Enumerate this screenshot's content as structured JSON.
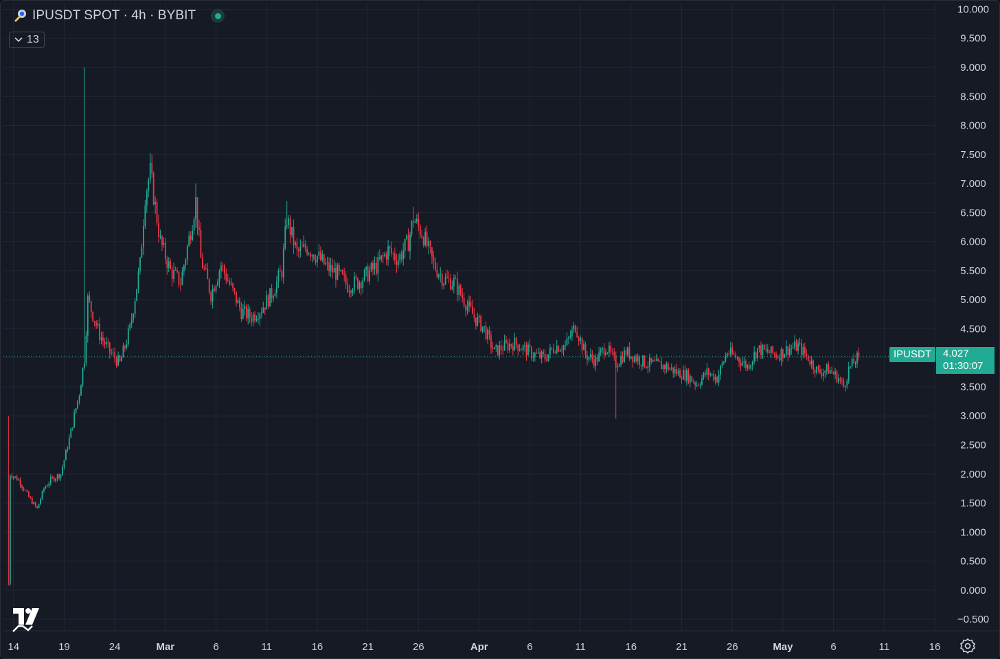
{
  "header": {
    "symbol_line": "IPUSDT SPOT · 4h · BYBIT",
    "indicator_count": "13"
  },
  "colors": {
    "background": "#161a25",
    "grid": "#232733",
    "text": "#d1d4dc",
    "up": "#22ab94",
    "down": "#f23645"
  },
  "price_label": {
    "ticker": "IPUSDT",
    "last_price": "4.027",
    "countdown": "01:30:07"
  },
  "chart_data": {
    "type": "candlestick",
    "symbol": "IPUSDT",
    "interval": "4h",
    "exchange": "BYBIT",
    "ylim": [
      -0.7,
      10.1
    ],
    "y_ticks": [
      "10.000",
      "9.500",
      "9.000",
      "8.500",
      "8.000",
      "7.500",
      "7.000",
      "6.500",
      "6.000",
      "5.500",
      "5.000",
      "4.500",
      "4.000",
      "3.500",
      "3.000",
      "2.500",
      "2.000",
      "1.500",
      "1.000",
      "0.500",
      "0.000",
      "−0.500"
    ],
    "x_ticks": [
      "14",
      "19",
      "24",
      "Mar",
      "6",
      "11",
      "16",
      "21",
      "26",
      "Apr",
      "6",
      "11",
      "16",
      "21",
      "26",
      "May",
      "6",
      "11",
      "16"
    ],
    "x_range_days": [
      "2025-02-13",
      "2025-05-16"
    ],
    "current_price": 4.027,
    "price_path": [
      [
        "2025-02-13T12:00",
        0.1,
        3.0
      ],
      [
        "2025-02-13T16:00",
        2.0
      ],
      [
        "2025-02-14T12:00",
        1.9
      ],
      [
        "2025-02-15T12:00",
        1.6
      ],
      [
        "2025-02-16T08:00",
        1.4
      ],
      [
        "2025-02-17T00:00",
        1.75
      ],
      [
        "2025-02-17T16:00",
        1.9
      ],
      [
        "2025-02-18T16:00",
        2.0
      ],
      [
        "2025-02-19T12:00",
        2.6
      ],
      [
        "2025-02-20T12:00",
        3.4
      ],
      [
        "2025-02-21T00:00",
        4.0,
        9.0
      ],
      [
        "2025-02-21T08:00",
        5.0
      ],
      [
        "2025-02-22T12:00",
        4.4
      ],
      [
        "2025-02-23T12:00",
        4.1
      ],
      [
        "2025-02-24T12:00",
        3.9
      ],
      [
        "2025-02-25T12:00",
        4.5
      ],
      [
        "2025-02-26T12:00",
        5.6
      ],
      [
        "2025-02-27T00:00",
        6.8
      ],
      [
        "2025-02-27T12:00",
        7.2,
        7.5
      ],
      [
        "2025-02-28T12:00",
        6.0
      ],
      [
        "2025-03-01T12:00",
        5.5
      ],
      [
        "2025-03-02T12:00",
        5.3
      ],
      [
        "2025-03-03T12:00",
        6.2
      ],
      [
        "2025-03-04T00:00",
        6.7,
        7.0
      ],
      [
        "2025-03-04T12:00",
        5.7
      ],
      [
        "2025-03-05T12:00",
        5.1
      ],
      [
        "2025-03-06T12:00",
        5.6
      ],
      [
        "2025-03-07T12:00",
        5.2
      ],
      [
        "2025-03-08T12:00",
        4.8
      ],
      [
        "2025-03-09T12:00",
        4.7
      ],
      [
        "2025-03-10T12:00",
        4.85
      ],
      [
        "2025-03-11T12:00",
        5.1
      ],
      [
        "2025-03-12T12:00",
        5.5
      ],
      [
        "2025-03-13T00:00",
        6.4,
        6.7
      ],
      [
        "2025-03-14T00:00",
        5.8
      ],
      [
        "2025-03-15T00:00",
        5.9
      ],
      [
        "2025-03-16T00:00",
        5.75
      ],
      [
        "2025-03-17T00:00",
        5.55
      ],
      [
        "2025-03-18T00:00",
        5.45
      ],
      [
        "2025-03-19T00:00",
        5.25
      ],
      [
        "2025-03-20T00:00",
        5.3
      ],
      [
        "2025-03-21T00:00",
        5.45
      ],
      [
        "2025-03-22T00:00",
        5.6
      ],
      [
        "2025-03-23T00:00",
        5.85
      ],
      [
        "2025-03-24T00:00",
        5.7
      ],
      [
        "2025-03-25T00:00",
        6.0
      ],
      [
        "2025-03-25T12:00",
        6.4,
        6.6
      ],
      [
        "2025-03-26T12:00",
        6.1
      ],
      [
        "2025-03-27T12:00",
        5.6
      ],
      [
        "2025-03-28T12:00",
        5.35
      ],
      [
        "2025-03-29T12:00",
        5.3
      ],
      [
        "2025-03-30T12:00",
        5.0
      ],
      [
        "2025-03-31T12:00",
        4.7
      ],
      [
        "2025-04-01T12:00",
        4.5
      ],
      [
        "2025-04-02T12:00",
        4.1
      ],
      [
        "2025-04-03T12:00",
        4.2
      ],
      [
        "2025-04-04T12:00",
        4.25
      ],
      [
        "2025-04-05T12:00",
        4.15
      ],
      [
        "2025-04-06T12:00",
        4.05
      ],
      [
        "2025-04-07T12:00",
        4.0
      ],
      [
        "2025-04-08T12:00",
        4.2
      ],
      [
        "2025-04-09T12:00",
        4.2
      ],
      [
        "2025-04-10T12:00",
        4.55
      ],
      [
        "2025-04-11T12:00",
        4.05
      ],
      [
        "2025-04-12T12:00",
        3.95
      ],
      [
        "2025-04-13T12:00",
        4.2
      ],
      [
        "2025-04-14T12:00",
        3.9,
        2.95
      ],
      [
        "2025-04-15T12:00",
        4.1
      ],
      [
        "2025-04-16T12:00",
        4.0
      ],
      [
        "2025-04-17T12:00",
        3.9
      ],
      [
        "2025-04-18T12:00",
        3.88
      ],
      [
        "2025-04-19T12:00",
        3.85
      ],
      [
        "2025-04-20T12:00",
        3.75
      ],
      [
        "2025-04-21T12:00",
        3.7
      ],
      [
        "2025-04-22T12:00",
        3.55
      ],
      [
        "2025-04-23T12:00",
        3.75
      ],
      [
        "2025-04-24T12:00",
        3.65
      ],
      [
        "2025-04-25T12:00",
        4.1
      ],
      [
        "2025-04-26T12:00",
        4.0
      ],
      [
        "2025-04-27T12:00",
        3.85
      ],
      [
        "2025-04-28T12:00",
        4.15
      ],
      [
        "2025-04-29T12:00",
        4.1
      ],
      [
        "2025-04-30T12:00",
        4.05
      ],
      [
        "2025-05-01T12:00",
        4.15
      ],
      [
        "2025-05-02T12:00",
        4.2
      ],
      [
        "2025-05-03T12:00",
        4.0
      ],
      [
        "2025-05-04T12:00",
        3.75
      ],
      [
        "2025-05-05T12:00",
        3.8
      ],
      [
        "2025-05-06T12:00",
        3.65
      ],
      [
        "2025-05-07T00:00",
        3.5
      ],
      [
        "2025-05-07T12:00",
        3.8
      ],
      [
        "2025-05-08T12:00",
        4.027
      ]
    ]
  }
}
